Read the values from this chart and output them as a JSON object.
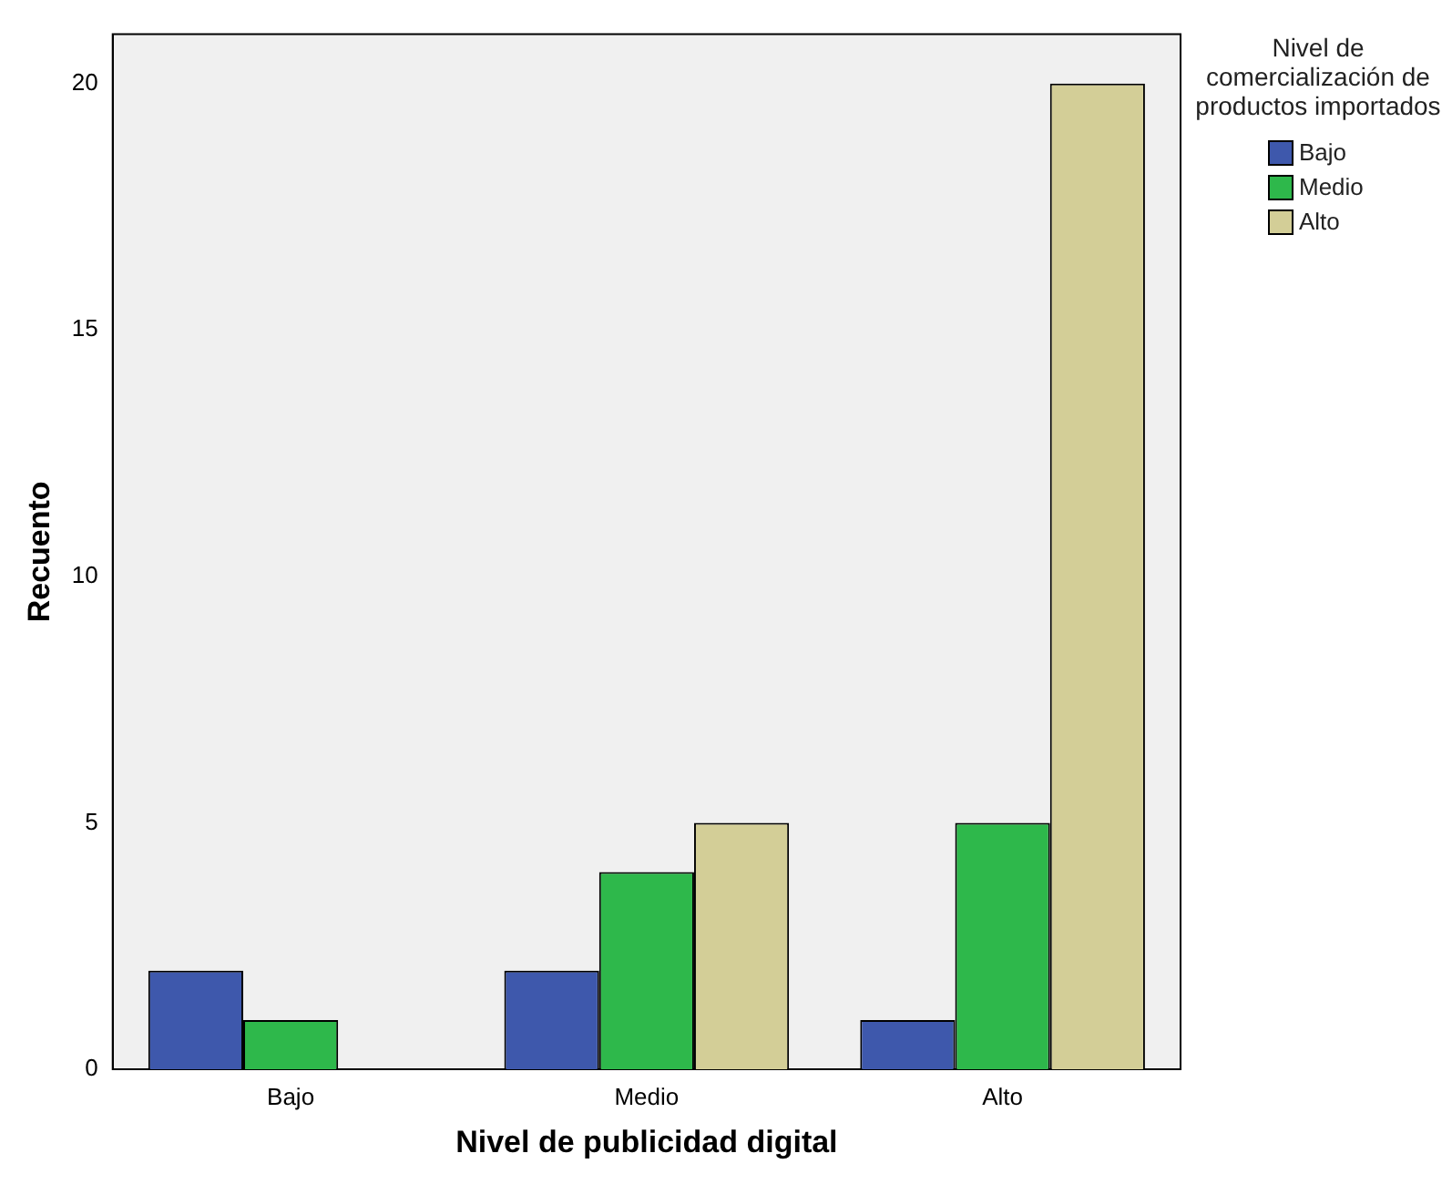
{
  "chart_data": {
    "type": "bar",
    "xlabel": "Nivel de publicidad digital",
    "ylabel": "Recuento",
    "legend_title": "Nivel de comercialización de productos importados",
    "categories": [
      "Bajo",
      "Medio",
      "Alto"
    ],
    "series": [
      {
        "name": "Bajo",
        "color": "#3e58ac",
        "values": [
          2,
          2,
          1
        ]
      },
      {
        "name": "Medio",
        "color": "#2eb84b",
        "values": [
          1,
          4,
          5
        ]
      },
      {
        "name": "Alto",
        "color": "#d3ce97",
        "values": [
          0,
          5,
          20
        ]
      }
    ],
    "ylim": [
      0,
      21
    ],
    "yticks": [
      0,
      5,
      10,
      15,
      20
    ],
    "grid": false,
    "legend": "top right"
  }
}
